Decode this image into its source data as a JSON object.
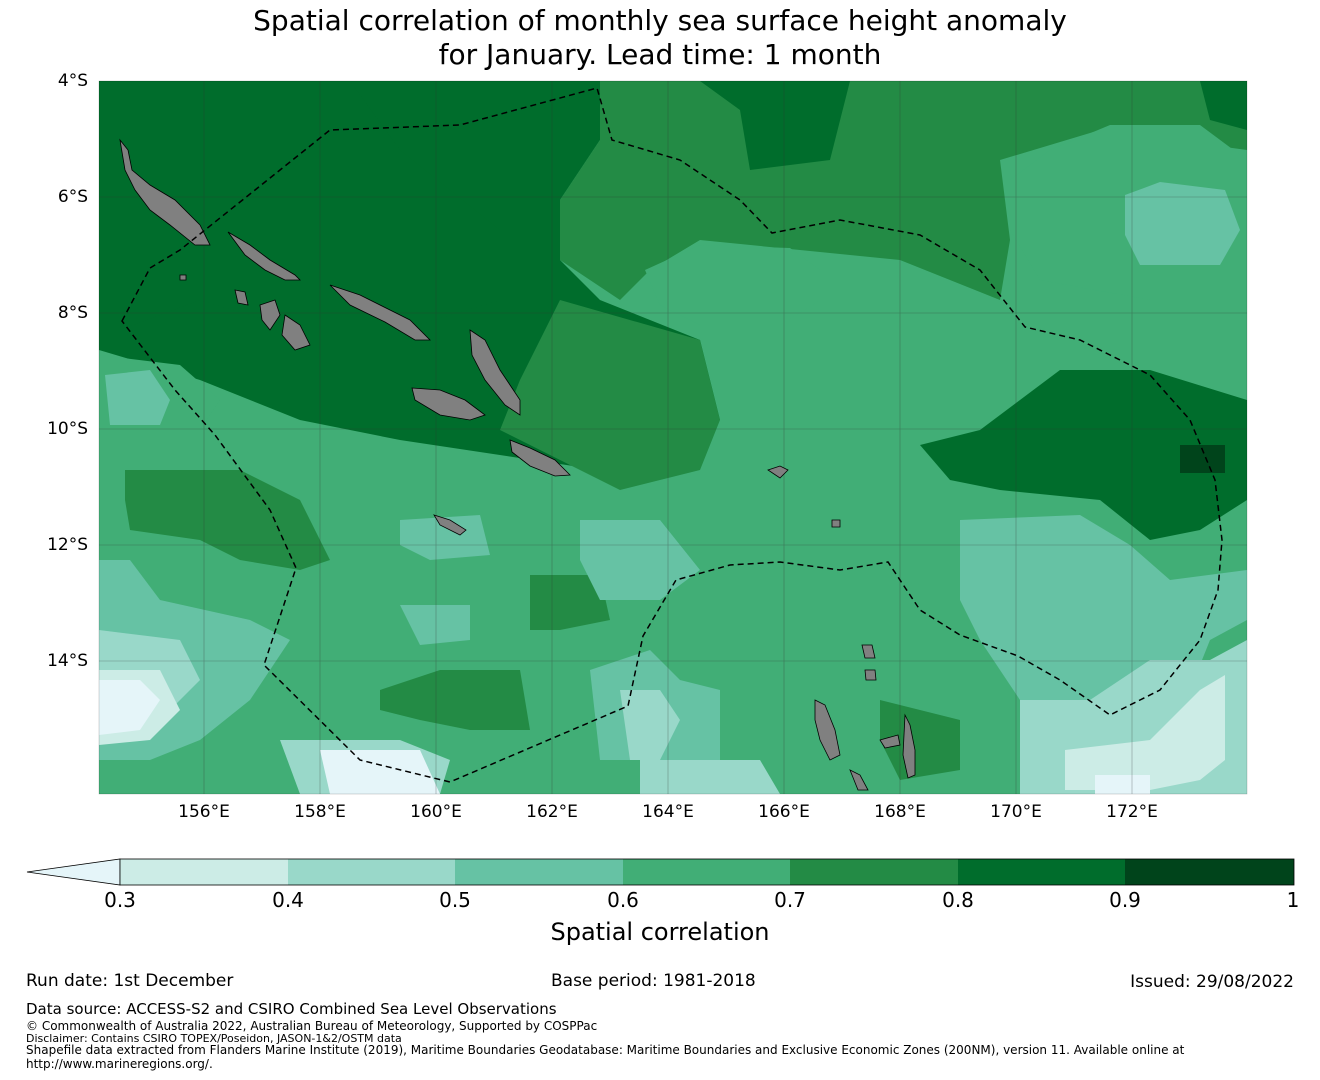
{
  "title": {
    "line1": "Spatial correlation of monthly sea surface height anomaly",
    "line2": "for January. Lead time: 1 month"
  },
  "map": {
    "lat_labels": [
      "4°S",
      "6°S",
      "8°S",
      "10°S",
      "12°S",
      "14°S"
    ],
    "lon_labels": [
      "156°E",
      "158°E",
      "160°E",
      "162°E",
      "164°E",
      "166°E",
      "168°E",
      "170°E",
      "172°E"
    ],
    "lon_range": [
      154.2,
      174.0
    ],
    "lat_range": [
      -4.0,
      -16.3
    ],
    "land_color": "#808080"
  },
  "colorbar": {
    "ticks": [
      "0.3",
      "0.4",
      "0.5",
      "0.6",
      "0.7",
      "0.8",
      "0.9",
      "1"
    ],
    "colors": [
      "#e5f5f9",
      "#ccece6",
      "#99d8c9",
      "#66c2a4",
      "#41ae76",
      "#238b45",
      "#006d2c",
      "#00441b"
    ],
    "label": "Spatial correlation"
  },
  "footer": {
    "run_date": "Run date: 1st December",
    "base_period": "Base period: 1981-2018",
    "issued": "Issued: 29/08/2022",
    "data_source": "Data source: ACCESS-S2 and CSIRO Combined Sea Level Observations",
    "copyright": "© Commonwealth of Australia 2022, Australian Bureau of Meteorology, Supported by COSPPac",
    "disclaimer": "Disclaimer: Contains CSIRO TOPEX/Poseidon, JASON-1&2/OSTM data",
    "shapefile": "Shapefile data extracted from Flanders Marine Institute (2019), Maritime Boundaries Geodatabase: Maritime Boundaries and Exclusive Economic Zones (200NM), version 11. Available online at",
    "url": "http://www.marineregions.org/."
  }
}
